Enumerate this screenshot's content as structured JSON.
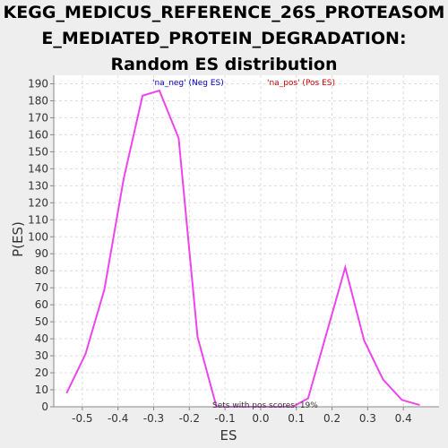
{
  "chart_data": {
    "type": "line",
    "title_lines": [
      "KEGG_MEDICUS_REFERENCE_26S_PROTEASOM",
      "E_MEDIATED_PROTEIN_DEGRADATION:",
      "Random ES distribution"
    ],
    "xlabel": "ES",
    "ylabel": "P(ES)",
    "xlim": [
      -0.58,
      0.5
    ],
    "ylim": [
      0,
      195
    ],
    "x_ticks": [
      -0.5,
      -0.4,
      -0.3,
      -0.2,
      -0.1,
      0.0,
      0.1,
      0.2,
      0.3,
      0.4
    ],
    "x_tick_labels": [
      "-0.5",
      "-0.4",
      "-0.3",
      "-0.2",
      "-0.1",
      "0.0",
      "0.1",
      "0.2",
      "0.3",
      "0.4"
    ],
    "y_ticks": [
      0,
      10,
      20,
      30,
      40,
      50,
      60,
      70,
      80,
      90,
      100,
      110,
      120,
      130,
      140,
      150,
      160,
      170,
      180,
      190
    ],
    "y_tick_labels": [
      "0",
      "10",
      "20",
      "30",
      "40",
      "50",
      "60",
      "70",
      "80",
      "90",
      "100",
      "110",
      "120",
      "130",
      "140",
      "150",
      "160",
      "170",
      "180",
      "190"
    ],
    "grid": true,
    "legend": [
      {
        "label": "'na_neg' (Neg ES)",
        "color": "#0000cc"
      },
      {
        "label": "'na_pos' (Pos ES)",
        "color": "#cc0000"
      }
    ],
    "annotation": "Sets with pos scores: 19%",
    "series": [
      {
        "color": "#ee44ee",
        "x": [
          -0.544,
          -0.491,
          -0.438,
          -0.384,
          -0.331,
          -0.284,
          -0.23,
          -0.177,
          -0.124,
          -0.07,
          -0.017,
          0.036,
          0.09,
          0.133,
          0.183,
          0.237,
          0.29,
          0.343,
          0.396,
          0.446
        ],
        "y": [
          8,
          31,
          69,
          134,
          183,
          186,
          158,
          41,
          0,
          0,
          0,
          0,
          0,
          5,
          42,
          82,
          39,
          16,
          4,
          1
        ]
      }
    ]
  }
}
